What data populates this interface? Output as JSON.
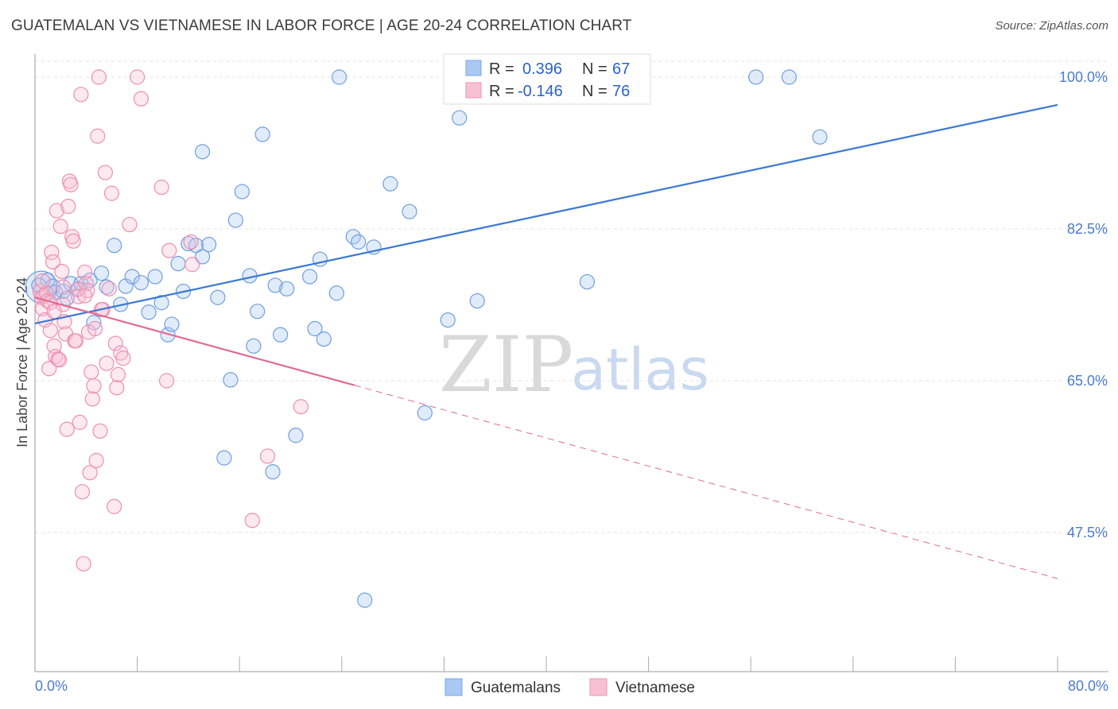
{
  "header": {
    "title": "GUATEMALAN VS VIETNAMESE IN LABOR FORCE | AGE 20-24 CORRELATION CHART",
    "source": "Source: ZipAtlas.com"
  },
  "legend_top": {
    "rows": [
      {
        "r_label": "R =",
        "r_value": "0.396",
        "n_label": "N =",
        "n_value": "67",
        "color": "#a9c8f2",
        "stroke": "#7aa6e6"
      },
      {
        "r_label": "R =",
        "r_value": "-0.146",
        "n_label": "N =",
        "n_value": "76",
        "color": "#f8c0d3",
        "stroke": "#ee93b3"
      }
    ]
  },
  "legend_bottom": {
    "items": [
      {
        "label": "Guatemalans",
        "color": "#a9c8f2",
        "stroke": "#7aa6e6"
      },
      {
        "label": "Vietnamese",
        "color": "#f8c0d3",
        "stroke": "#ee93b3"
      }
    ]
  },
  "watermark": {
    "zip": "ZIP",
    "atlas": "atlas"
  },
  "chart_data": {
    "type": "scatter",
    "ylabel": "In Labor Force | Age 20-24",
    "xlim": [
      0,
      80
    ],
    "ylim": [
      31.5,
      102
    ],
    "x_tick_labels": [
      {
        "value": 0,
        "label": "0.0%"
      },
      {
        "value": 80,
        "label": "80.0%"
      }
    ],
    "y_tick_labels": [
      {
        "value": 100,
        "label": "100.0%"
      },
      {
        "value": 82.5,
        "label": "82.5%"
      },
      {
        "value": 65,
        "label": "65.0%"
      },
      {
        "value": 47.5,
        "label": "47.5%"
      }
    ],
    "grid": true,
    "colors": {
      "guatemalans": "#3a78d4",
      "vietnamese": "#e26a92"
    },
    "series": [
      {
        "name": "Guatemalans",
        "trend": {
          "x0": 0,
          "y0": 71.6,
          "x1": 80,
          "y1": 96.8
        },
        "points": [
          [
            0.5,
            75.8
          ],
          [
            1.0,
            76.6
          ],
          [
            1.4,
            75.9
          ],
          [
            1.6,
            75.2
          ],
          [
            2.2,
            75.3
          ],
          [
            2.8,
            76.2
          ],
          [
            3.4,
            75.6
          ],
          [
            3.6,
            76.2
          ],
          [
            4.3,
            76.6
          ],
          [
            4.6,
            71.7
          ],
          [
            5.2,
            77.4
          ],
          [
            5.6,
            75.8
          ],
          [
            6.2,
            80.6
          ],
          [
            6.7,
            73.8
          ],
          [
            7.1,
            75.9
          ],
          [
            7.6,
            77.0
          ],
          [
            8.3,
            76.3
          ],
          [
            8.9,
            72.9
          ],
          [
            9.4,
            77.0
          ],
          [
            9.9,
            74.0
          ],
          [
            10.4,
            70.3
          ],
          [
            10.7,
            71.5
          ],
          [
            11.2,
            78.5
          ],
          [
            11.6,
            75.3
          ],
          [
            12.0,
            80.8
          ],
          [
            12.6,
            80.6
          ],
          [
            13.1,
            79.3
          ],
          [
            13.6,
            80.7
          ],
          [
            13.1,
            91.4
          ],
          [
            14.3,
            74.6
          ],
          [
            14.8,
            56.1
          ],
          [
            15.3,
            65.1
          ],
          [
            15.7,
            83.5
          ],
          [
            16.2,
            86.8
          ],
          [
            16.8,
            77.1
          ],
          [
            17.1,
            69.0
          ],
          [
            17.4,
            73.0
          ],
          [
            17.8,
            93.4
          ],
          [
            18.6,
            54.5
          ],
          [
            18.8,
            76.0
          ],
          [
            19.2,
            70.3
          ],
          [
            19.7,
            75.6
          ],
          [
            20.4,
            58.7
          ],
          [
            21.5,
            77.0
          ],
          [
            21.9,
            71.0
          ],
          [
            22.3,
            79.0
          ],
          [
            22.6,
            69.8
          ],
          [
            23.6,
            75.1
          ],
          [
            23.8,
            100.0
          ],
          [
            24.9,
            81.6
          ],
          [
            25.3,
            81.0
          ],
          [
            25.8,
            39.7
          ],
          [
            26.5,
            80.4
          ],
          [
            27.8,
            87.7
          ],
          [
            29.3,
            84.5
          ],
          [
            30.5,
            61.3
          ],
          [
            32.3,
            72.0
          ],
          [
            33.2,
            95.3
          ],
          [
            34.6,
            74.2
          ],
          [
            36.1,
            100.0
          ],
          [
            43.2,
            76.4
          ],
          [
            43.8,
            100.0
          ],
          [
            56.4,
            100.0
          ],
          [
            59.0,
            100.0
          ],
          [
            61.4,
            93.1
          ],
          [
            0.3,
            76.0
          ],
          [
            2.5,
            74.5
          ]
        ],
        "point_sizes": {
          "0": 20
        }
      },
      {
        "name": "Vietnamese",
        "trend": {
          "x0": 0,
          "y0": 74.6,
          "x1": 80,
          "y1": 42.2,
          "solid_until_x": 25
        },
        "points": [
          [
            0.4,
            75.3
          ],
          [
            0.5,
            74.6
          ],
          [
            0.6,
            73.3
          ],
          [
            0.7,
            74.8
          ],
          [
            0.8,
            72.0
          ],
          [
            0.9,
            75.1
          ],
          [
            1.0,
            74.2
          ],
          [
            1.1,
            66.4
          ],
          [
            1.2,
            74.0
          ],
          [
            1.3,
            79.8
          ],
          [
            1.4,
            78.7
          ],
          [
            1.5,
            69.0
          ],
          [
            1.6,
            67.8
          ],
          [
            1.7,
            84.6
          ],
          [
            1.8,
            67.5
          ],
          [
            1.9,
            67.4
          ],
          [
            2.0,
            82.8
          ],
          [
            2.1,
            77.6
          ],
          [
            2.2,
            73.8
          ],
          [
            2.3,
            71.8
          ],
          [
            2.4,
            70.4
          ],
          [
            2.5,
            59.4
          ],
          [
            2.6,
            85.1
          ],
          [
            2.7,
            88.0
          ],
          [
            2.8,
            87.6
          ],
          [
            2.9,
            81.6
          ],
          [
            3.0,
            81.1
          ],
          [
            3.1,
            69.6
          ],
          [
            3.2,
            69.6
          ],
          [
            3.3,
            75.5
          ],
          [
            3.4,
            74.7
          ],
          [
            3.5,
            60.2
          ],
          [
            3.6,
            98.0
          ],
          [
            3.7,
            52.2
          ],
          [
            3.8,
            43.9
          ],
          [
            3.9,
            77.5
          ],
          [
            4.0,
            76.2
          ],
          [
            4.1,
            75.4
          ],
          [
            4.2,
            70.6
          ],
          [
            4.3,
            54.4
          ],
          [
            4.4,
            66.0
          ],
          [
            4.5,
            62.9
          ],
          [
            4.6,
            64.4
          ],
          [
            4.7,
            71.0
          ],
          [
            4.8,
            55.8
          ],
          [
            4.9,
            93.2
          ],
          [
            5.0,
            100.0
          ],
          [
            5.1,
            59.2
          ],
          [
            5.3,
            73.2
          ],
          [
            5.5,
            89.0
          ],
          [
            5.6,
            67.0
          ],
          [
            5.8,
            75.6
          ],
          [
            6.0,
            86.6
          ],
          [
            6.2,
            50.5
          ],
          [
            6.3,
            69.3
          ],
          [
            6.4,
            64.2
          ],
          [
            6.5,
            65.7
          ],
          [
            6.7,
            68.2
          ],
          [
            6.9,
            67.6
          ],
          [
            7.4,
            83.0
          ],
          [
            8.0,
            100.0
          ],
          [
            8.3,
            97.5
          ],
          [
            9.9,
            87.3
          ],
          [
            10.3,
            65.0
          ],
          [
            10.5,
            80.0
          ],
          [
            12.2,
            81.0
          ],
          [
            12.3,
            78.4
          ],
          [
            17.0,
            48.9
          ],
          [
            18.2,
            56.3
          ],
          [
            20.8,
            62.0
          ],
          [
            1.5,
            73.0
          ],
          [
            2.2,
            75.8
          ],
          [
            0.6,
            76.5
          ],
          [
            1.2,
            70.8
          ],
          [
            3.9,
            74.8
          ],
          [
            5.2,
            73.2
          ]
        ]
      }
    ]
  }
}
